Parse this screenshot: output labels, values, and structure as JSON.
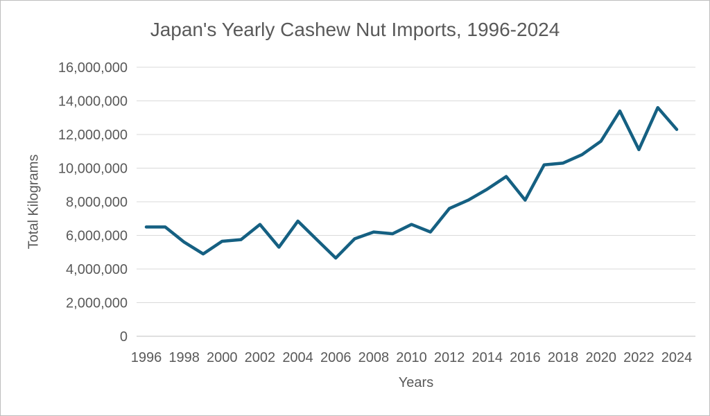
{
  "chart_data": {
    "type": "line",
    "title": "Japan's Yearly Cashew Nut Imports, 1996-2024",
    "xlabel": "Years",
    "ylabel": "Total Kilograms",
    "x": [
      1996,
      1997,
      1998,
      1999,
      2000,
      2001,
      2002,
      2003,
      2004,
      2005,
      2006,
      2007,
      2008,
      2009,
      2010,
      2011,
      2012,
      2013,
      2014,
      2015,
      2016,
      2017,
      2018,
      2019,
      2020,
      2021,
      2022,
      2023,
      2024
    ],
    "series": [
      {
        "name": "Total Kilograms",
        "values": [
          6500000,
          6500000,
          5600000,
          4900000,
          5650000,
          5750000,
          6650000,
          5300000,
          6850000,
          5750000,
          4650000,
          5800000,
          6200000,
          6100000,
          6650000,
          6200000,
          7600000,
          8100000,
          8750000,
          9500000,
          8100000,
          10200000,
          10300000,
          10800000,
          11600000,
          13400000,
          11100000,
          13600000,
          12300000
        ]
      }
    ],
    "ylim": [
      0,
      16000000
    ],
    "ytick_step": 2000000,
    "ytick_labels": [
      "0",
      "2,000,000",
      "4,000,000",
      "6,000,000",
      "8,000,000",
      "10,000,000",
      "12,000,000",
      "14,000,000",
      "16,000,000"
    ],
    "xtick_labels": [
      "1996",
      "1998",
      "2000",
      "2002",
      "2004",
      "2006",
      "2008",
      "2010",
      "2012",
      "2014",
      "2016",
      "2018",
      "2020",
      "2022",
      "2024"
    ],
    "grid": "horizontal",
    "legend_position": "none",
    "colors": {
      "line": "#156082",
      "gridline": "#D9D9D9",
      "axis_line": "#BFBFBF",
      "text": "#595959"
    }
  }
}
